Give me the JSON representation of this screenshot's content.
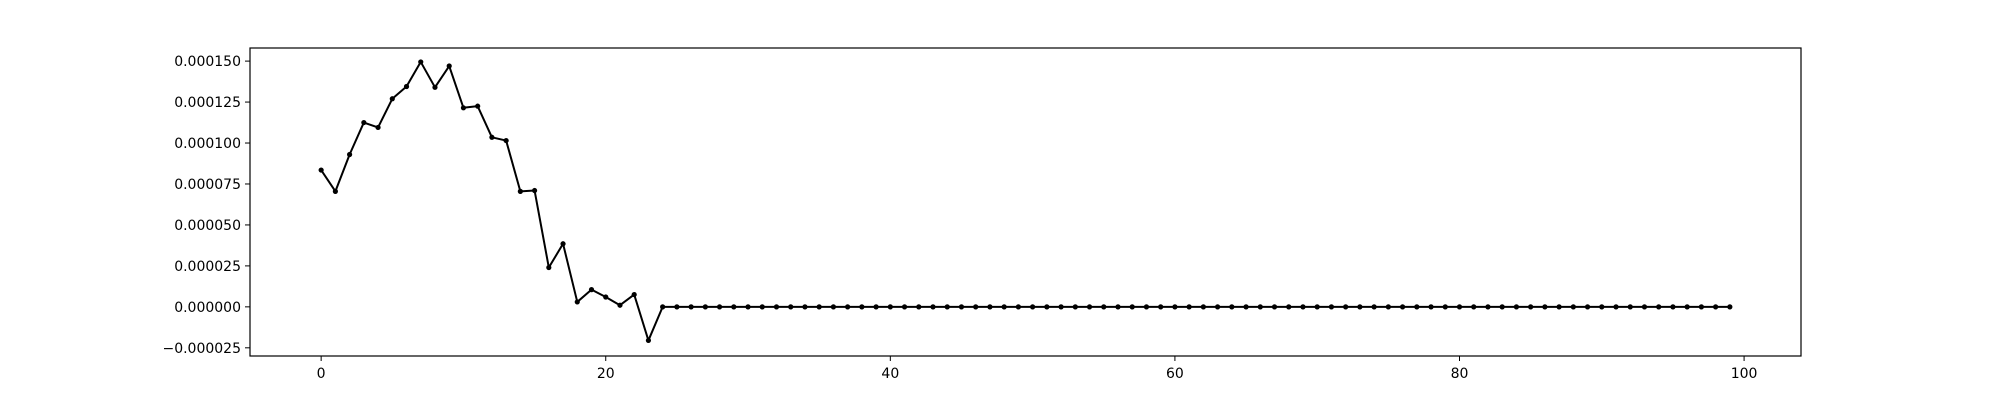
{
  "chart_data": {
    "type": "line",
    "title": "",
    "xlabel": "",
    "ylabel": "",
    "xlim": [
      -5,
      104
    ],
    "ylim": [
      -3e-05,
      0.000158
    ],
    "grid": false,
    "legend": "none",
    "line_color": "#000000",
    "x_ticks": [
      0,
      20,
      40,
      60,
      80,
      100
    ],
    "x_tick_labels": [
      "0",
      "20",
      "40",
      "60",
      "80",
      "100"
    ],
    "y_ticks": [
      -2.5e-05,
      0,
      2.5e-05,
      5e-05,
      7.5e-05,
      0.0001,
      0.000125,
      0.00015
    ],
    "y_tick_labels": [
      "−0.000025",
      "0.000000",
      "0.000025",
      "0.000050",
      "0.000075",
      "0.000100",
      "0.000125",
      "0.000150"
    ],
    "series": [
      {
        "x": [
          0,
          1,
          2,
          3,
          4,
          5,
          6,
          7,
          8,
          9,
          10,
          11,
          12,
          13,
          14,
          15,
          16,
          17,
          18,
          19,
          20,
          21,
          22,
          23,
          24,
          25,
          26,
          27,
          28,
          29,
          30,
          31,
          32,
          33,
          34,
          35,
          36,
          37,
          38,
          39,
          40,
          41,
          42,
          43,
          44,
          45,
          46,
          47,
          48,
          49,
          50,
          51,
          52,
          53,
          54,
          55,
          56,
          57,
          58,
          59,
          60,
          61,
          62,
          63,
          64,
          65,
          66,
          67,
          68,
          69,
          70,
          71,
          72,
          73,
          74,
          75,
          76,
          77,
          78,
          79,
          80,
          81,
          82,
          83,
          84,
          85,
          86,
          87,
          88,
          89,
          90,
          91,
          92,
          93,
          94,
          95,
          96,
          97,
          98,
          99
        ],
        "values": [
          8.35e-05,
          7.05e-05,
          9.3e-05,
          0.0001125,
          0.0001095,
          0.000127,
          0.0001345,
          0.0001495,
          0.000134,
          0.000147,
          0.0001215,
          0.0001225,
          0.0001035,
          0.0001015,
          7.05e-05,
          7.1e-05,
          2.4e-05,
          3.85e-05,
          3e-06,
          1.05e-05,
          6e-06,
          1e-06,
          7.5e-06,
          -2.05e-05,
          0,
          0,
          0,
          0,
          0,
          0,
          0,
          0,
          0,
          0,
          0,
          0,
          0,
          0,
          0,
          0,
          0,
          0,
          0,
          0,
          0,
          0,
          0,
          0,
          0,
          0,
          0,
          0,
          0,
          0,
          0,
          0,
          0,
          0,
          0,
          0,
          0,
          0,
          0,
          0,
          0,
          0,
          0,
          0,
          0,
          0,
          0,
          0,
          0,
          0,
          0,
          0,
          0,
          0,
          0,
          0,
          0,
          0,
          0,
          0,
          0,
          0,
          0,
          0,
          0,
          0,
          0,
          0,
          0,
          0,
          0,
          0,
          0,
          0,
          0,
          0
        ]
      }
    ]
  }
}
